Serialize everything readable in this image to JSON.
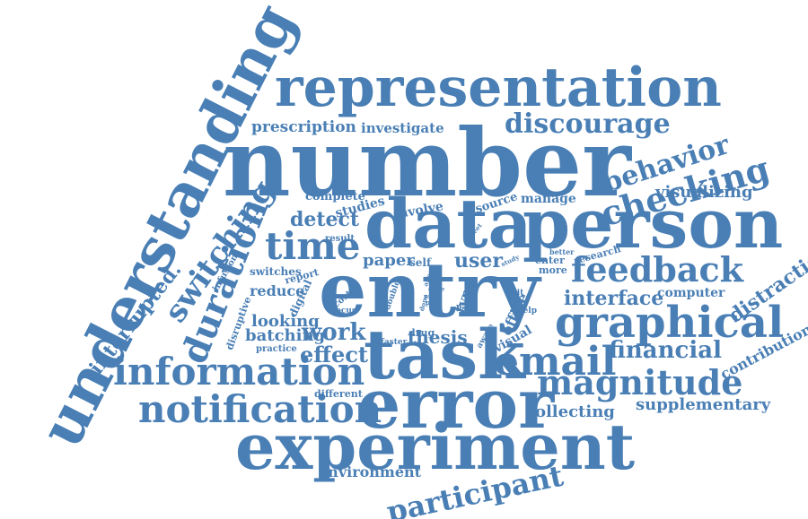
{
  "colors": {
    "word": "#4a7fb5",
    "background": "#ffffff"
  },
  "words": [
    {
      "text": "understanding",
      "weight": 95
    },
    {
      "text": "number",
      "weight": 100
    },
    {
      "text": "representation",
      "weight": 80
    },
    {
      "text": "data",
      "weight": 90
    },
    {
      "text": "person",
      "weight": 88
    },
    {
      "text": "entry",
      "weight": 92
    },
    {
      "text": "task",
      "weight": 88
    },
    {
      "text": "error",
      "weight": 88
    },
    {
      "text": "experiment",
      "weight": 90
    },
    {
      "text": "graphical",
      "weight": 65
    },
    {
      "text": "feedback",
      "weight": 55
    },
    {
      "text": "email",
      "weight": 60
    },
    {
      "text": "information",
      "weight": 58
    },
    {
      "text": "notification",
      "weight": 58
    },
    {
      "text": "magnitude",
      "weight": 52
    },
    {
      "text": "checking",
      "weight": 50
    },
    {
      "text": "discourage",
      "weight": 42
    },
    {
      "text": "behavior",
      "weight": 40
    },
    {
      "text": "duration",
      "weight": 50
    },
    {
      "text": "switching",
      "weight": 45
    },
    {
      "text": "time",
      "weight": 48
    },
    {
      "text": "participant",
      "weight": 48
    },
    {
      "text": "financial",
      "weight": 36
    },
    {
      "text": "work",
      "weight": 34
    },
    {
      "text": "effect",
      "weight": 32
    },
    {
      "text": "interface",
      "weight": 30
    },
    {
      "text": "distraction",
      "weight": 30
    },
    {
      "text": "visualizing",
      "weight": 26
    },
    {
      "text": "supplementary",
      "weight": 26
    },
    {
      "text": "collecting",
      "weight": 26
    },
    {
      "text": "interrupted.",
      "weight": 28
    },
    {
      "text": "prescription",
      "weight": 24
    },
    {
      "text": "investigate",
      "weight": 22
    },
    {
      "text": "detect",
      "weight": 26
    },
    {
      "text": "user",
      "weight": 26
    },
    {
      "text": "thesis",
      "weight": 24
    },
    {
      "text": "paper",
      "weight": 22
    },
    {
      "text": "contribution",
      "weight": 20
    },
    {
      "text": "computer",
      "weight": 18
    },
    {
      "text": "environment",
      "weight": 20
    },
    {
      "text": "batching",
      "weight": 20
    },
    {
      "text": "looking",
      "weight": 20
    },
    {
      "text": "reduce",
      "weight": 18
    },
    {
      "text": "office",
      "weight": 18
    },
    {
      "text": "type",
      "weight": 18
    },
    {
      "text": "visual",
      "weight": 18
    },
    {
      "text": "complete",
      "weight": 16
    },
    {
      "text": "studies",
      "weight": 16
    },
    {
      "text": "involve",
      "weight": 16
    },
    {
      "text": "manage",
      "weight": 16
    },
    {
      "text": "source",
      "weight": 16
    },
    {
      "text": "switches",
      "weight": 14
    },
    {
      "text": "report",
      "weight": 14
    },
    {
      "text": "digital",
      "weight": 14
    },
    {
      "text": "disruptive",
      "weight": 14
    },
    {
      "text": "practice",
      "weight": 12
    },
    {
      "text": "different",
      "weight": 12
    },
    {
      "text": "self",
      "weight": 14
    },
    {
      "text": "result",
      "weight": 12
    },
    {
      "text": "infusion",
      "weight": 12
    },
    {
      "text": "cost",
      "weight": 12
    },
    {
      "text": "focus",
      "weight": 11
    },
    {
      "text": "double",
      "weight": 11
    },
    {
      "text": "drug",
      "weight": 12
    },
    {
      "text": "faster",
      "weight": 11
    },
    {
      "text": "part",
      "weight": 11
    },
    {
      "text": "visit",
      "weight": 11
    },
    {
      "text": "help",
      "weight": 11
    },
    {
      "text": "aware",
      "weight": 11
    },
    {
      "text": "enter",
      "weight": 12
    },
    {
      "text": "more",
      "weight": 12
    },
    {
      "text": "better",
      "weight": 10
    },
    {
      "text": "research",
      "weight": 12
    },
    {
      "text": "sheet",
      "weight": 10
    },
    {
      "text": "study",
      "weight": 10
    },
    {
      "text": "affect",
      "weight": 10
    },
    {
      "text": "code",
      "weight": 10
    },
    {
      "text": "prior",
      "weight": 10
    },
    {
      "text": "poor",
      "weight": 10
    },
    {
      "text": "done",
      "weight": 10
    }
  ]
}
